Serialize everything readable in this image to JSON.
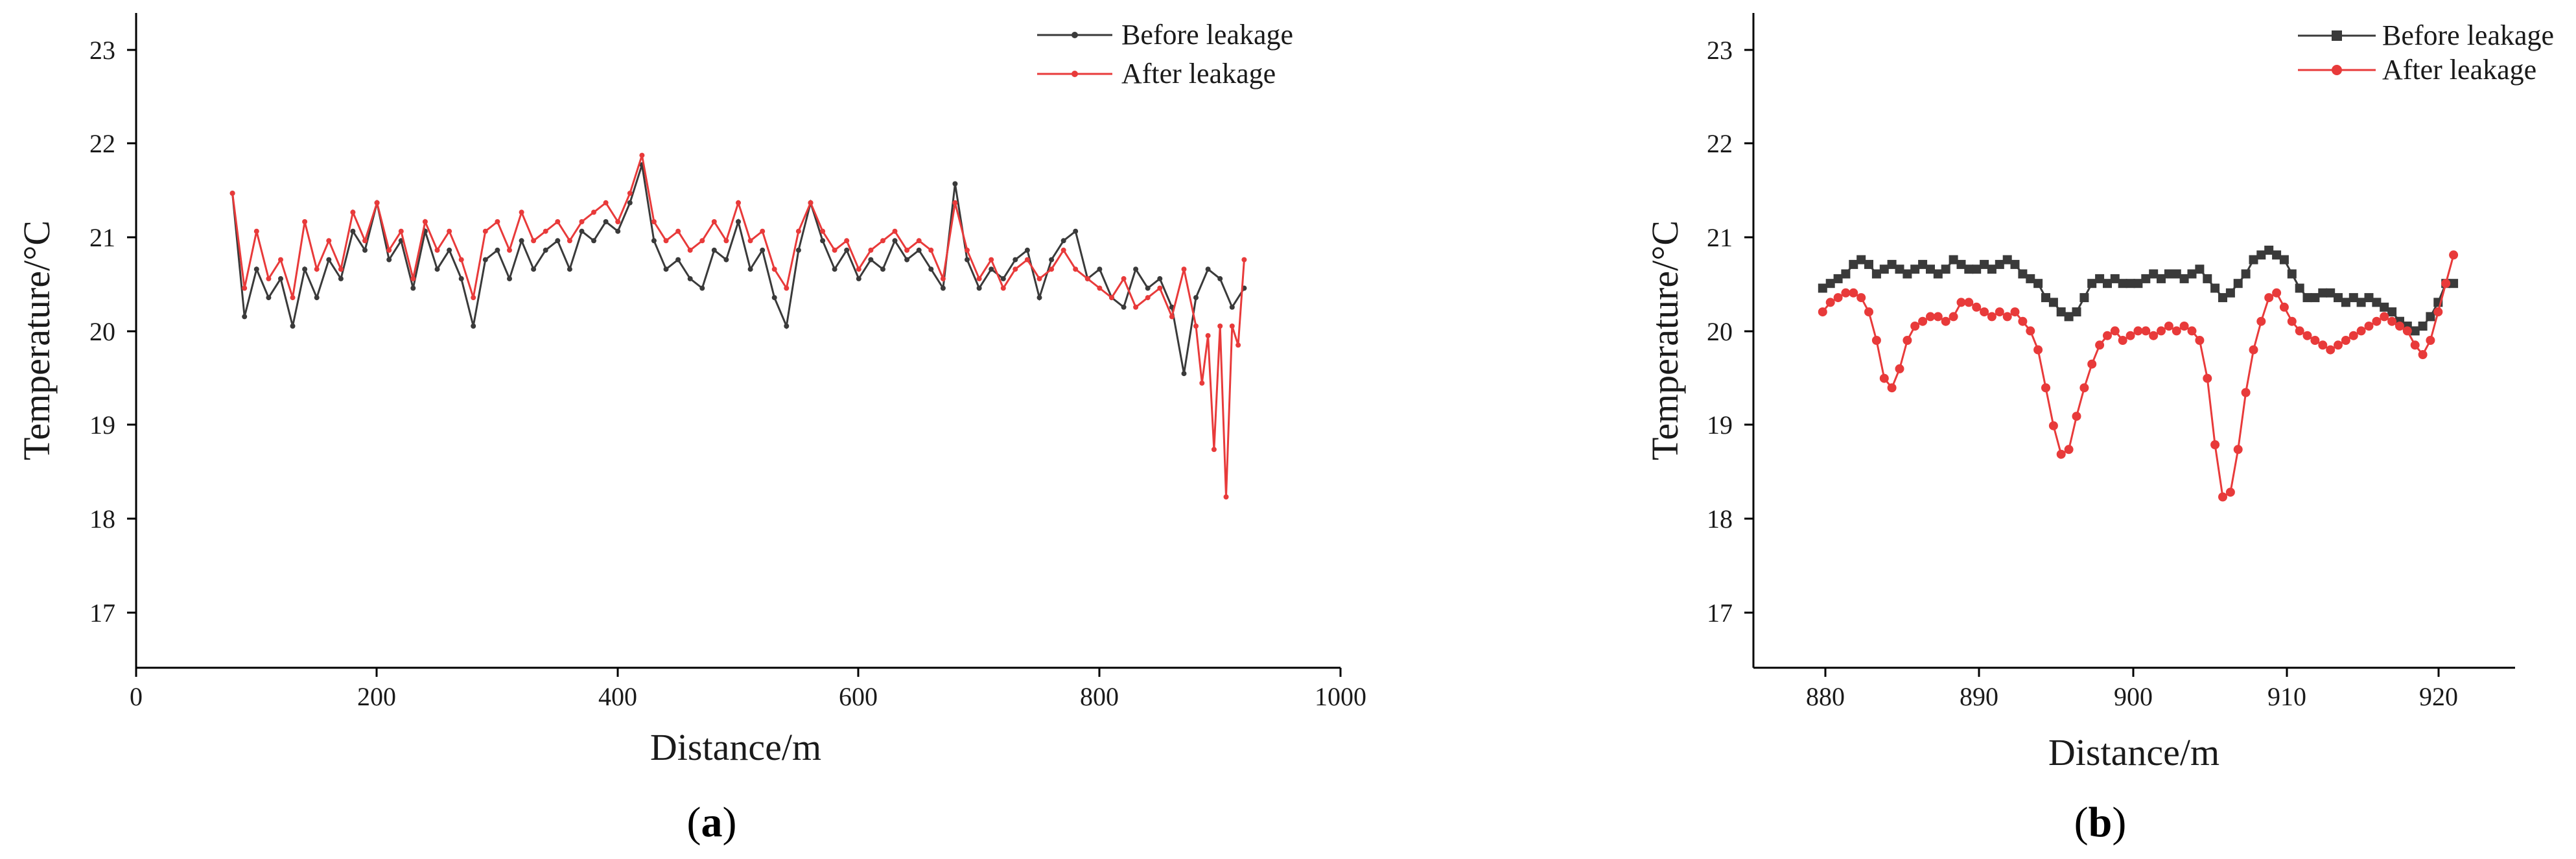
{
  "chart_data": [
    {
      "type": "line",
      "panel": "a",
      "panel_caption": {
        "open": "(",
        "letter": "a",
        "close": ")"
      },
      "xlabel": "Distance/m",
      "ylabel": "Temperature/°C",
      "xlim": [
        0,
        1000
      ],
      "ylim": [
        16.4,
        23.3
      ],
      "xticks": [
        0,
        200,
        400,
        600,
        800,
        1000
      ],
      "xtick_labels": [
        "0",
        "200",
        "400",
        "600",
        "800",
        "1000"
      ],
      "yticks": [
        17,
        18,
        19,
        20,
        21,
        22,
        23
      ],
      "ytick_labels": [
        "17",
        "18",
        "19",
        "20",
        "21",
        "22",
        "23"
      ],
      "grid": false,
      "legend_position": "top-right",
      "series": [
        {
          "name": "Before leakage",
          "color": "#3a3a3a",
          "x": [
            80,
            90,
            100,
            110,
            120,
            130,
            140,
            150,
            160,
            170,
            180,
            190,
            200,
            210,
            220,
            230,
            240,
            250,
            260,
            270,
            280,
            290,
            300,
            310,
            320,
            330,
            340,
            350,
            360,
            370,
            380,
            390,
            400,
            410,
            420,
            430,
            440,
            450,
            460,
            470,
            480,
            490,
            500,
            510,
            520,
            530,
            540,
            550,
            560,
            570,
            580,
            590,
            600,
            610,
            620,
            630,
            640,
            650,
            660,
            670,
            680,
            690,
            700,
            710,
            720,
            730,
            740,
            750,
            760,
            770,
            780,
            790,
            800,
            810,
            820,
            830,
            840,
            850,
            860,
            870,
            880,
            890,
            900,
            910,
            920
          ],
          "y": [
            21.4,
            20.1,
            20.6,
            20.3,
            20.5,
            20.0,
            20.6,
            20.3,
            20.7,
            20.5,
            21.0,
            20.8,
            21.3,
            20.7,
            20.9,
            20.4,
            21.0,
            20.6,
            20.8,
            20.5,
            20.0,
            20.7,
            20.8,
            20.5,
            20.9,
            20.6,
            20.8,
            20.9,
            20.6,
            21.0,
            20.9,
            21.1,
            21.0,
            21.3,
            21.7,
            20.9,
            20.6,
            20.7,
            20.5,
            20.4,
            20.8,
            20.7,
            21.1,
            20.6,
            20.8,
            20.3,
            20.0,
            20.8,
            21.3,
            20.9,
            20.6,
            20.8,
            20.5,
            20.7,
            20.6,
            20.9,
            20.7,
            20.8,
            20.6,
            20.4,
            21.5,
            20.7,
            20.4,
            20.6,
            20.5,
            20.7,
            20.8,
            20.3,
            20.7,
            20.9,
            21.0,
            20.5,
            20.6,
            20.3,
            20.2,
            20.6,
            20.4,
            20.5,
            20.2,
            19.5,
            20.3,
            20.6,
            20.5,
            20.2,
            20.4
          ]
        },
        {
          "name": "After leakage",
          "color": "#e83a3a",
          "x": [
            80,
            90,
            100,
            110,
            120,
            130,
            140,
            150,
            160,
            170,
            180,
            190,
            200,
            210,
            220,
            230,
            240,
            250,
            260,
            270,
            280,
            290,
            300,
            310,
            320,
            330,
            340,
            350,
            360,
            370,
            380,
            390,
            400,
            410,
            420,
            430,
            440,
            450,
            460,
            470,
            480,
            490,
            500,
            510,
            520,
            530,
            540,
            550,
            560,
            570,
            580,
            590,
            600,
            610,
            620,
            630,
            640,
            650,
            660,
            670,
            680,
            690,
            700,
            710,
            720,
            730,
            740,
            750,
            760,
            770,
            780,
            790,
            800,
            810,
            820,
            830,
            840,
            850,
            860,
            870,
            880,
            885,
            890,
            895,
            900,
            905,
            910,
            915,
            920
          ],
          "y": [
            21.4,
            20.4,
            21.0,
            20.5,
            20.7,
            20.3,
            21.1,
            20.6,
            20.9,
            20.6,
            21.2,
            20.9,
            21.3,
            20.8,
            21.0,
            20.5,
            21.1,
            20.8,
            21.0,
            20.7,
            20.3,
            21.0,
            21.1,
            20.8,
            21.2,
            20.9,
            21.0,
            21.1,
            20.9,
            21.1,
            21.2,
            21.3,
            21.1,
            21.4,
            21.8,
            21.1,
            20.9,
            21.0,
            20.8,
            20.9,
            21.1,
            20.9,
            21.3,
            20.9,
            21.0,
            20.6,
            20.4,
            21.0,
            21.3,
            21.0,
            20.8,
            20.9,
            20.6,
            20.8,
            20.9,
            21.0,
            20.8,
            20.9,
            20.8,
            20.5,
            21.3,
            20.8,
            20.5,
            20.7,
            20.4,
            20.6,
            20.7,
            20.5,
            20.6,
            20.8,
            20.6,
            20.5,
            20.4,
            20.3,
            20.5,
            20.2,
            20.3,
            20.4,
            20.1,
            20.6,
            20.0,
            19.4,
            19.9,
            18.7,
            20.0,
            18.2,
            20.0,
            19.8,
            20.7
          ]
        }
      ]
    },
    {
      "type": "line",
      "panel": "b",
      "panel_caption": {
        "open": "(",
        "letter": "b",
        "close": ")"
      },
      "xlabel": "Distance/m",
      "ylabel": "Temperature/°C",
      "xlim": [
        875.5,
        925
      ],
      "ylim": [
        16.4,
        23.3
      ],
      "xticks": [
        880,
        890,
        900,
        910,
        920
      ],
      "xtick_labels": [
        "880",
        "890",
        "900",
        "910",
        "920"
      ],
      "yticks": [
        17,
        18,
        19,
        20,
        21,
        22,
        23
      ],
      "ytick_labels": [
        "17",
        "18",
        "19",
        "20",
        "21",
        "22",
        "23"
      ],
      "grid": false,
      "legend_position": "top-right",
      "series": [
        {
          "name": "Before leakage",
          "color": "#3a3a3a",
          "marker": "square",
          "x": [
            880.0,
            880.5,
            881.0,
            881.5,
            882.0,
            882.5,
            883.0,
            883.5,
            884.0,
            884.5,
            885.0,
            885.5,
            886.0,
            886.5,
            887.0,
            887.5,
            888.0,
            888.5,
            889.0,
            889.5,
            890.0,
            890.5,
            891.0,
            891.5,
            892.0,
            892.5,
            893.0,
            893.5,
            894.0,
            894.5,
            895.0,
            895.5,
            896.0,
            896.5,
            897.0,
            897.5,
            898.0,
            898.5,
            899.0,
            899.5,
            900.0,
            900.5,
            901.0,
            901.5,
            902.0,
            902.5,
            903.0,
            903.5,
            904.0,
            904.5,
            905.0,
            905.5,
            906.0,
            906.5,
            907.0,
            907.5,
            908.0,
            908.5,
            909.0,
            909.5,
            910.0,
            910.5,
            911.0,
            911.5,
            912.0,
            912.5,
            913.0,
            913.5,
            914.0,
            914.5,
            915.0,
            915.5,
            916.0,
            916.5,
            917.0,
            917.5,
            918.0,
            918.5,
            919.0,
            919.5,
            920.0,
            920.5,
            921.0
          ],
          "y": [
            20.4,
            20.45,
            20.5,
            20.55,
            20.65,
            20.7,
            20.65,
            20.55,
            20.6,
            20.65,
            20.6,
            20.55,
            20.6,
            20.65,
            20.6,
            20.55,
            20.6,
            20.7,
            20.65,
            20.6,
            20.6,
            20.65,
            20.6,
            20.65,
            20.7,
            20.65,
            20.55,
            20.5,
            20.45,
            20.3,
            20.25,
            20.15,
            20.1,
            20.15,
            20.3,
            20.45,
            20.5,
            20.45,
            20.5,
            20.45,
            20.45,
            20.45,
            20.5,
            20.55,
            20.5,
            20.55,
            20.55,
            20.5,
            20.55,
            20.6,
            20.5,
            20.4,
            20.3,
            20.35,
            20.45,
            20.55,
            20.7,
            20.75,
            20.8,
            20.75,
            20.7,
            20.55,
            20.4,
            20.3,
            20.3,
            20.35,
            20.35,
            20.3,
            20.25,
            20.3,
            20.25,
            20.3,
            20.25,
            20.2,
            20.15,
            20.05,
            20.0,
            19.95,
            20.0,
            20.1,
            20.25,
            20.45,
            20.45
          ]
        },
        {
          "name": "After leakage",
          "color": "#e83a3a",
          "marker": "circle",
          "x": [
            880.0,
            880.5,
            881.0,
            881.5,
            882.0,
            882.5,
            883.0,
            883.5,
            884.0,
            884.5,
            885.0,
            885.5,
            886.0,
            886.5,
            887.0,
            887.5,
            888.0,
            888.5,
            889.0,
            889.5,
            890.0,
            890.5,
            891.0,
            891.5,
            892.0,
            892.5,
            893.0,
            893.5,
            894.0,
            894.5,
            895.0,
            895.5,
            896.0,
            896.5,
            897.0,
            897.5,
            898.0,
            898.5,
            899.0,
            899.5,
            900.0,
            900.5,
            901.0,
            901.5,
            902.0,
            902.5,
            903.0,
            903.5,
            904.0,
            904.5,
            905.0,
            905.5,
            906.0,
            906.5,
            907.0,
            907.5,
            908.0,
            908.5,
            909.0,
            909.5,
            910.0,
            910.5,
            911.0,
            911.5,
            912.0,
            912.5,
            913.0,
            913.5,
            914.0,
            914.5,
            915.0,
            915.5,
            916.0,
            916.5,
            917.0,
            917.5,
            918.0,
            918.5,
            919.0,
            919.5,
            920.0,
            920.5,
            921.0
          ],
          "y": [
            20.15,
            20.25,
            20.3,
            20.35,
            20.35,
            20.3,
            20.15,
            19.85,
            19.45,
            19.35,
            19.55,
            19.85,
            20.0,
            20.05,
            20.1,
            20.1,
            20.05,
            20.1,
            20.25,
            20.25,
            20.2,
            20.15,
            20.1,
            20.15,
            20.1,
            20.15,
            20.05,
            19.95,
            19.75,
            19.35,
            18.95,
            18.65,
            18.7,
            19.05,
            19.35,
            19.6,
            19.8,
            19.9,
            19.95,
            19.85,
            19.9,
            19.95,
            19.95,
            19.9,
            19.95,
            20.0,
            19.95,
            20.0,
            19.95,
            19.85,
            19.45,
            18.75,
            18.2,
            18.25,
            18.7,
            19.3,
            19.75,
            20.05,
            20.3,
            20.35,
            20.2,
            20.05,
            19.95,
            19.9,
            19.85,
            19.8,
            19.75,
            19.8,
            19.85,
            19.9,
            19.95,
            20.0,
            20.05,
            20.1,
            20.05,
            20.0,
            19.95,
            19.8,
            19.7,
            19.85,
            20.15,
            20.45,
            20.75
          ]
        }
      ]
    }
  ]
}
